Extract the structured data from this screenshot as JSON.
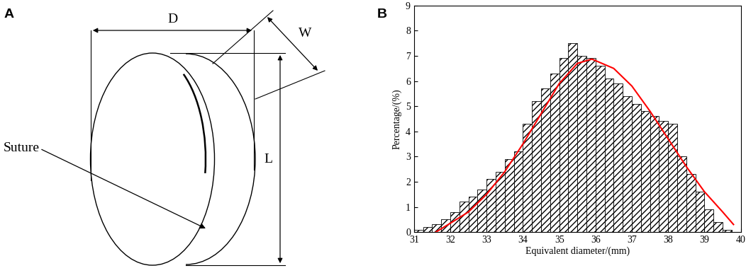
{
  "diagram": {
    "panel": "A",
    "dimension_labels": {
      "D": "D",
      "W": "W",
      "L": "L"
    },
    "annotation": "Suture"
  },
  "chart_data": {
    "type": "histogram",
    "panel": "B",
    "x_label": "Equivalent diameter/(mm)",
    "y_label": "Percentage/(%)",
    "bins": [
      31.0,
      31.25,
      31.5,
      31.75,
      32.0,
      32.25,
      32.5,
      32.75,
      33.0,
      33.25,
      33.5,
      33.75,
      34.0,
      34.25,
      34.5,
      34.75,
      35.0,
      35.25,
      35.5,
      35.75,
      36.0,
      36.25,
      36.5,
      36.75,
      37.0,
      37.25,
      37.5,
      37.75,
      38.0,
      38.25,
      38.5,
      38.75,
      39.0,
      39.25,
      39.5,
      39.75
    ],
    "values": [
      0.1,
      0.2,
      0.3,
      0.5,
      0.8,
      1.2,
      1.4,
      1.7,
      2.1,
      2.4,
      2.9,
      3.2,
      4.3,
      5.2,
      5.7,
      6.3,
      6.9,
      7.5,
      7.0,
      6.9,
      6.6,
      6.1,
      5.9,
      5.4,
      5.1,
      4.8,
      4.6,
      4.4,
      4.3,
      3.0,
      2.3,
      1.6,
      0.9,
      0.4,
      0.1
    ],
    "color": "#ffffff",
    "series": [
      {
        "type": "line",
        "color": "#ff0000",
        "x": [
          31.6,
          32.0,
          32.5,
          33.0,
          33.5,
          34.0,
          34.5,
          35.0,
          35.5,
          35.9,
          36.5,
          37.0,
          37.5,
          38.0,
          38.5,
          39.0,
          39.5,
          39.8
        ],
        "values": [
          0.0,
          0.35,
          0.8,
          1.5,
          2.4,
          3.5,
          4.7,
          5.9,
          6.7,
          6.87,
          6.5,
          5.8,
          4.8,
          3.7,
          2.6,
          1.6,
          0.8,
          0.3
        ]
      }
    ],
    "xlim": [
      31,
      40
    ],
    "xticks": [
      31,
      32,
      33,
      34,
      35,
      36,
      37,
      38,
      39,
      40
    ],
    "ylim": [
      0,
      9
    ],
    "yticks": [
      0,
      1,
      2,
      3,
      4,
      5,
      6,
      7,
      8,
      9
    ]
  }
}
